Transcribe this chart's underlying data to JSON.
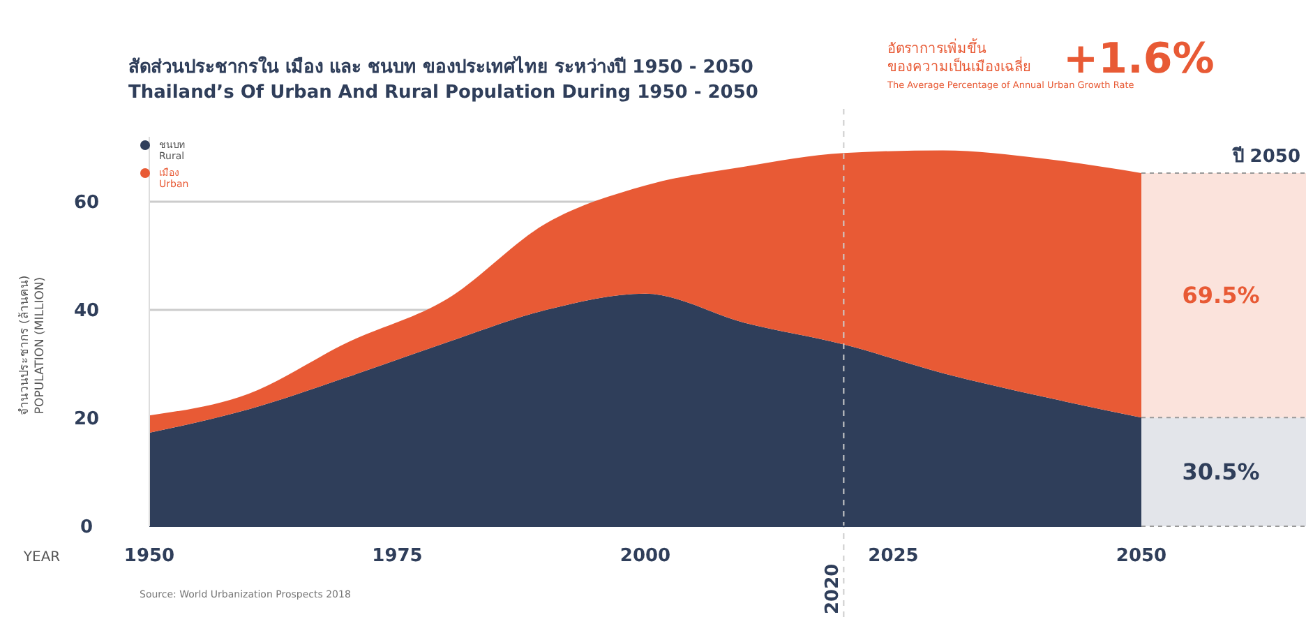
{
  "chart_data": {
    "type": "area",
    "stacked": true,
    "title": "สัดส่วนประชากรใน เมือง และ ชนบท ของประเทศไทย ระหว่างปี 1950 - 2050",
    "subtitle": "Thailand’s Of Urban And Rural Population During 1950 - 2050",
    "xlabel": "YEAR",
    "ylabel": "จำนวนประชากร (ล้านคน)\nPOPULATION (MILLION)",
    "x": [
      1950,
      1960,
      1970,
      1980,
      1990,
      2000,
      2010,
      2020,
      2030,
      2040,
      2050
    ],
    "series": [
      {
        "name": "ชนบท\nRural",
        "color": "#2f3e5a",
        "values": [
          17.3,
          21.6,
          27.6,
          34,
          40,
          43,
          37.6,
          33.6,
          28.3,
          24,
          20.1
        ]
      },
      {
        "name": "เมือง\nUrban",
        "color": "#e85a35",
        "values": [
          3.2,
          2.9,
          6.4,
          8,
          16,
          20,
          28.9,
          35.4,
          41.2,
          44,
          45.2
        ]
      }
    ],
    "xlim": [
      1950,
      2050
    ],
    "xticks": [
      1950,
      1975,
      2000,
      2025,
      2050
    ],
    "ylim": [
      0,
      72
    ],
    "yticks": [
      0,
      20,
      40,
      60
    ],
    "grid": "y",
    "legend": "top left",
    "ref_lines": [
      {
        "axis": "x",
        "value": 2020,
        "label": "2020",
        "line_style": "dashed"
      }
    ],
    "annotations": [
      "อัตราการเพิ่มขึ้น\nของความเป็นเมืองเฉลี่ย",
      "+1.6%",
      "The Average Percentage of Annual Urban Growth Rate",
      "ปี 2050",
      "69.5%",
      "30.5%",
      "Source: World Urbanization Prospects 2018"
    ]
  }
}
